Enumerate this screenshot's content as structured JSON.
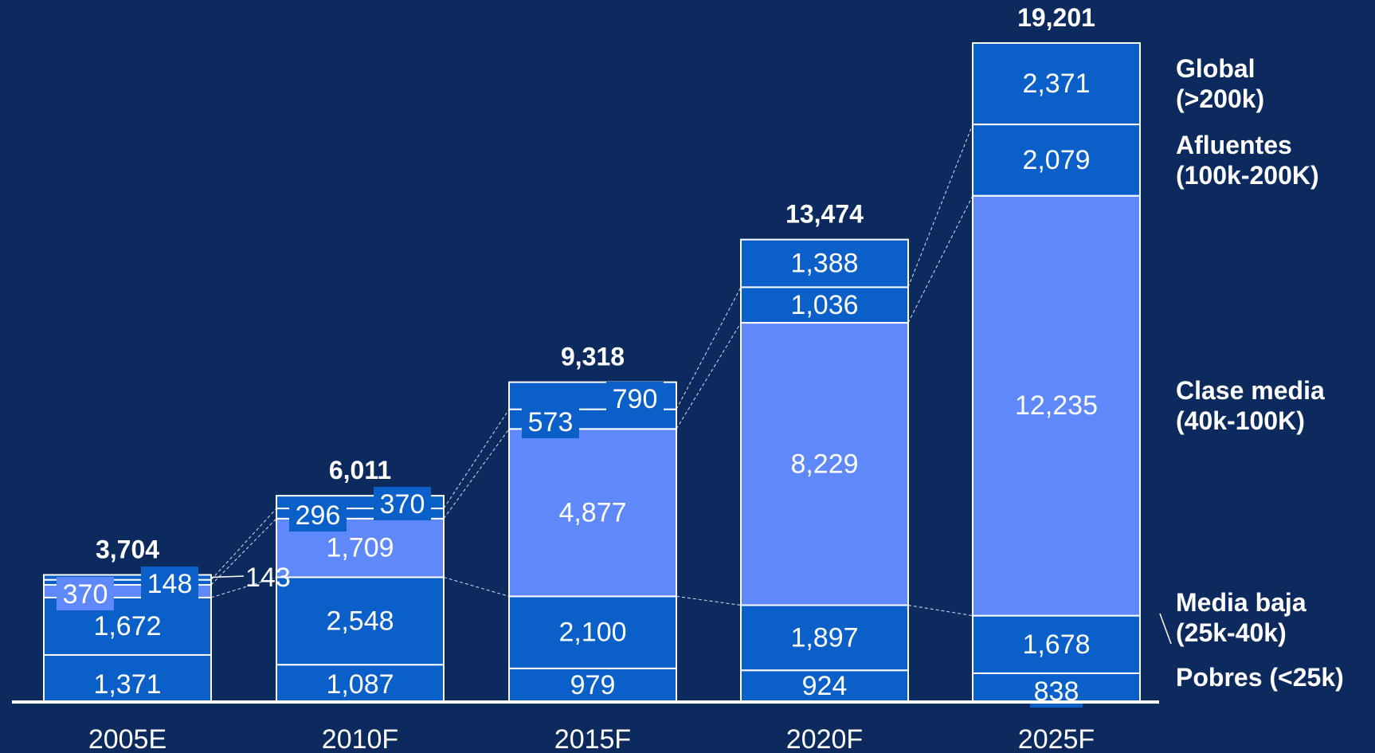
{
  "colors": {
    "background": "#0c2a5e",
    "segment_dark": "#0a5fc9",
    "segment_light": "#5f88fa",
    "text": "#ffffff",
    "outline": "#ffffff"
  },
  "chart_data": {
    "type": "bar",
    "stacked": true,
    "categories": [
      "2005E",
      "2010F",
      "2015F",
      "2020F",
      "2025F"
    ],
    "series": [
      {
        "name": "Pobres (<25k)",
        "values": [
          1371,
          1087,
          979,
          924,
          838
        ],
        "color": "#0a5fc9"
      },
      {
        "name": "Media baja\n(25k-40k)",
        "values": [
          1672,
          2548,
          2100,
          1897,
          1678
        ],
        "color": "#0a5fc9"
      },
      {
        "name": "Clase media\n(40k-100K)",
        "values": [
          370,
          1709,
          4877,
          8229,
          12235
        ],
        "color": "#5f88fa"
      },
      {
        "name": "Afluentes\n(100k-200K)",
        "values": [
          148,
          296,
          573,
          1036,
          2079
        ],
        "color": "#0a5fc9"
      },
      {
        "name": "Global\n(>200k)",
        "values": [
          143,
          370,
          790,
          1388,
          2371
        ],
        "color": "#0a5fc9"
      }
    ],
    "data_labels": [
      [
        "1,371",
        "1,087",
        "979",
        "924",
        "838"
      ],
      [
        "1,672",
        "2,548",
        "2,100",
        "1,897",
        "1,678"
      ],
      [
        "370",
        "1,709",
        "4,877",
        "8,229",
        "12,235"
      ],
      [
        "148",
        "296",
        "573",
        "1,036",
        "2,079"
      ],
      [
        "143",
        "370",
        "790",
        "1,388",
        "2,371"
      ]
    ],
    "totals": [
      "3,704",
      "6,011",
      "9,318",
      "13,474",
      "19,201"
    ],
    "total_values": [
      3704,
      6011,
      9318,
      13474,
      19201
    ],
    "legend": {
      "placement": "right",
      "entries": [
        "Global\n(>200k)",
        "Afluentes\n(100k-200K)",
        "Clase media\n(40k-100K)",
        "Media baja\n(25k-40k)",
        "Pobres (<25k)"
      ]
    },
    "connector_lines": true,
    "title": "",
    "xlabel": "",
    "ylabel": "",
    "ylim": [
      0,
      19201
    ]
  }
}
